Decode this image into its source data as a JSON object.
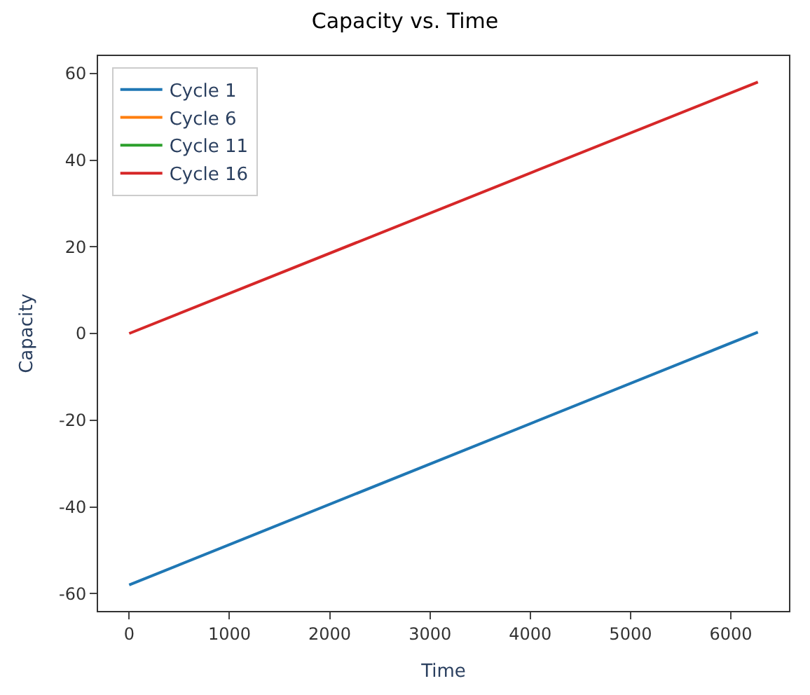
{
  "chart_data": {
    "type": "line",
    "title": "Capacity vs. Time",
    "xlabel": "Time",
    "ylabel": "Capacity",
    "x": [
      0,
      6270
    ],
    "series": [
      {
        "name": "Cycle 1",
        "color": "#1f77b4",
        "values": [
          -58,
          0.3
        ]
      },
      {
        "name": "Cycle 6",
        "color": "#ff7f0e",
        "values": [
          null,
          null
        ]
      },
      {
        "name": "Cycle 11",
        "color": "#2ca02c",
        "values": [
          null,
          null
        ]
      },
      {
        "name": "Cycle 16",
        "color": "#d62728",
        "values": [
          0,
          58
        ]
      }
    ],
    "xlim": [
      -310,
      6580
    ],
    "xticks": [
      0,
      1000,
      2000,
      3000,
      4000,
      5000,
      6000
    ],
    "ylim": [
      -64,
      64
    ],
    "yticks": [
      -60,
      -40,
      -20,
      0,
      20,
      40,
      60
    ],
    "legend": "top left",
    "marker": "none",
    "line_style": "solid"
  }
}
